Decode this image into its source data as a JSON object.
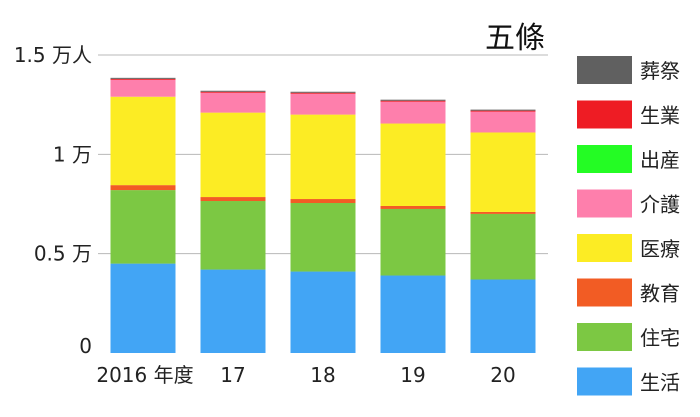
{
  "chart_data": {
    "type": "bar",
    "stacked": true,
    "title": "五條",
    "categories": [
      "2016 年度",
      "17",
      "18",
      "19",
      "20"
    ],
    "y_ticks": [
      {
        "value": 0,
        "label": "0"
      },
      {
        "value": 0.5,
        "label": "0.5 万"
      },
      {
        "value": 1.0,
        "label": "1 万"
      },
      {
        "value": 1.5,
        "label": "1.5 万人"
      }
    ],
    "ylim": [
      0,
      1.5
    ],
    "grid": true,
    "legend_position": "right",
    "series": [
      {
        "name": "生活",
        "color": "#42a5f5",
        "values": [
          0.45,
          0.42,
          0.41,
          0.39,
          0.37
        ]
      },
      {
        "name": "住宅",
        "color": "#7cc843",
        "values": [
          0.37,
          0.345,
          0.345,
          0.335,
          0.33
        ]
      },
      {
        "name": "教育",
        "color": "#f25c24",
        "values": [
          0.025,
          0.02,
          0.02,
          0.015,
          0.01
        ]
      },
      {
        "name": "医療",
        "color": "#fcec24",
        "values": [
          0.445,
          0.425,
          0.425,
          0.415,
          0.4
        ]
      },
      {
        "name": "介護",
        "color": "#fe7fac",
        "values": [
          0.085,
          0.1,
          0.105,
          0.11,
          0.105
        ]
      },
      {
        "name": "出産",
        "color": "#24fc24",
        "values": [
          0,
          0,
          0,
          0,
          0
        ]
      },
      {
        "name": "生業",
        "color": "#ee1c24",
        "values": [
          0.005,
          0.005,
          0.005,
          0.005,
          0.005
        ]
      },
      {
        "name": "葬祭",
        "color": "#606060",
        "values": [
          0.005,
          0.005,
          0.005,
          0.005,
          0.005
        ]
      }
    ],
    "legend_order": [
      "葬祭",
      "生業",
      "出産",
      "介護",
      "医療",
      "教育",
      "住宅",
      "生活"
    ]
  }
}
